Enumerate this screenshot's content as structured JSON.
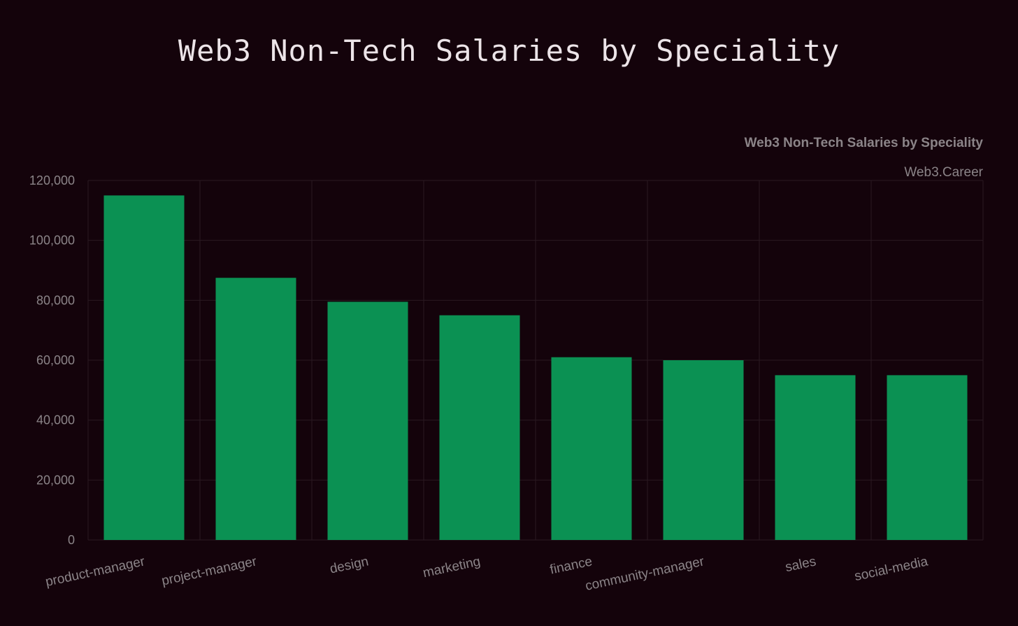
{
  "page": {
    "title": "Web3 Non-Tech Salaries by Speciality"
  },
  "colors": {
    "background": "#14030b",
    "bar": "#0b9153",
    "grid": "#2a1a22",
    "text": "#8b8488"
  },
  "chart_data": {
    "type": "bar",
    "title": "Web3 Non-Tech Salaries by Speciality",
    "subtitle": "Web3.Career",
    "xlabel": "",
    "ylabel": "",
    "categories": [
      "product-manager",
      "project-manager",
      "design",
      "marketing",
      "finance",
      "community-manager",
      "sales",
      "social-media"
    ],
    "values": [
      115000,
      87500,
      79500,
      75000,
      61000,
      60000,
      55000,
      55000
    ],
    "ylim": [
      0,
      120000
    ],
    "yticks": [
      0,
      20000,
      40000,
      60000,
      80000,
      100000,
      120000
    ],
    "ytick_labels": [
      "0",
      "20,000",
      "40,000",
      "60,000",
      "80,000",
      "100,000",
      "120,000"
    ],
    "grid": true,
    "legend": "none"
  }
}
